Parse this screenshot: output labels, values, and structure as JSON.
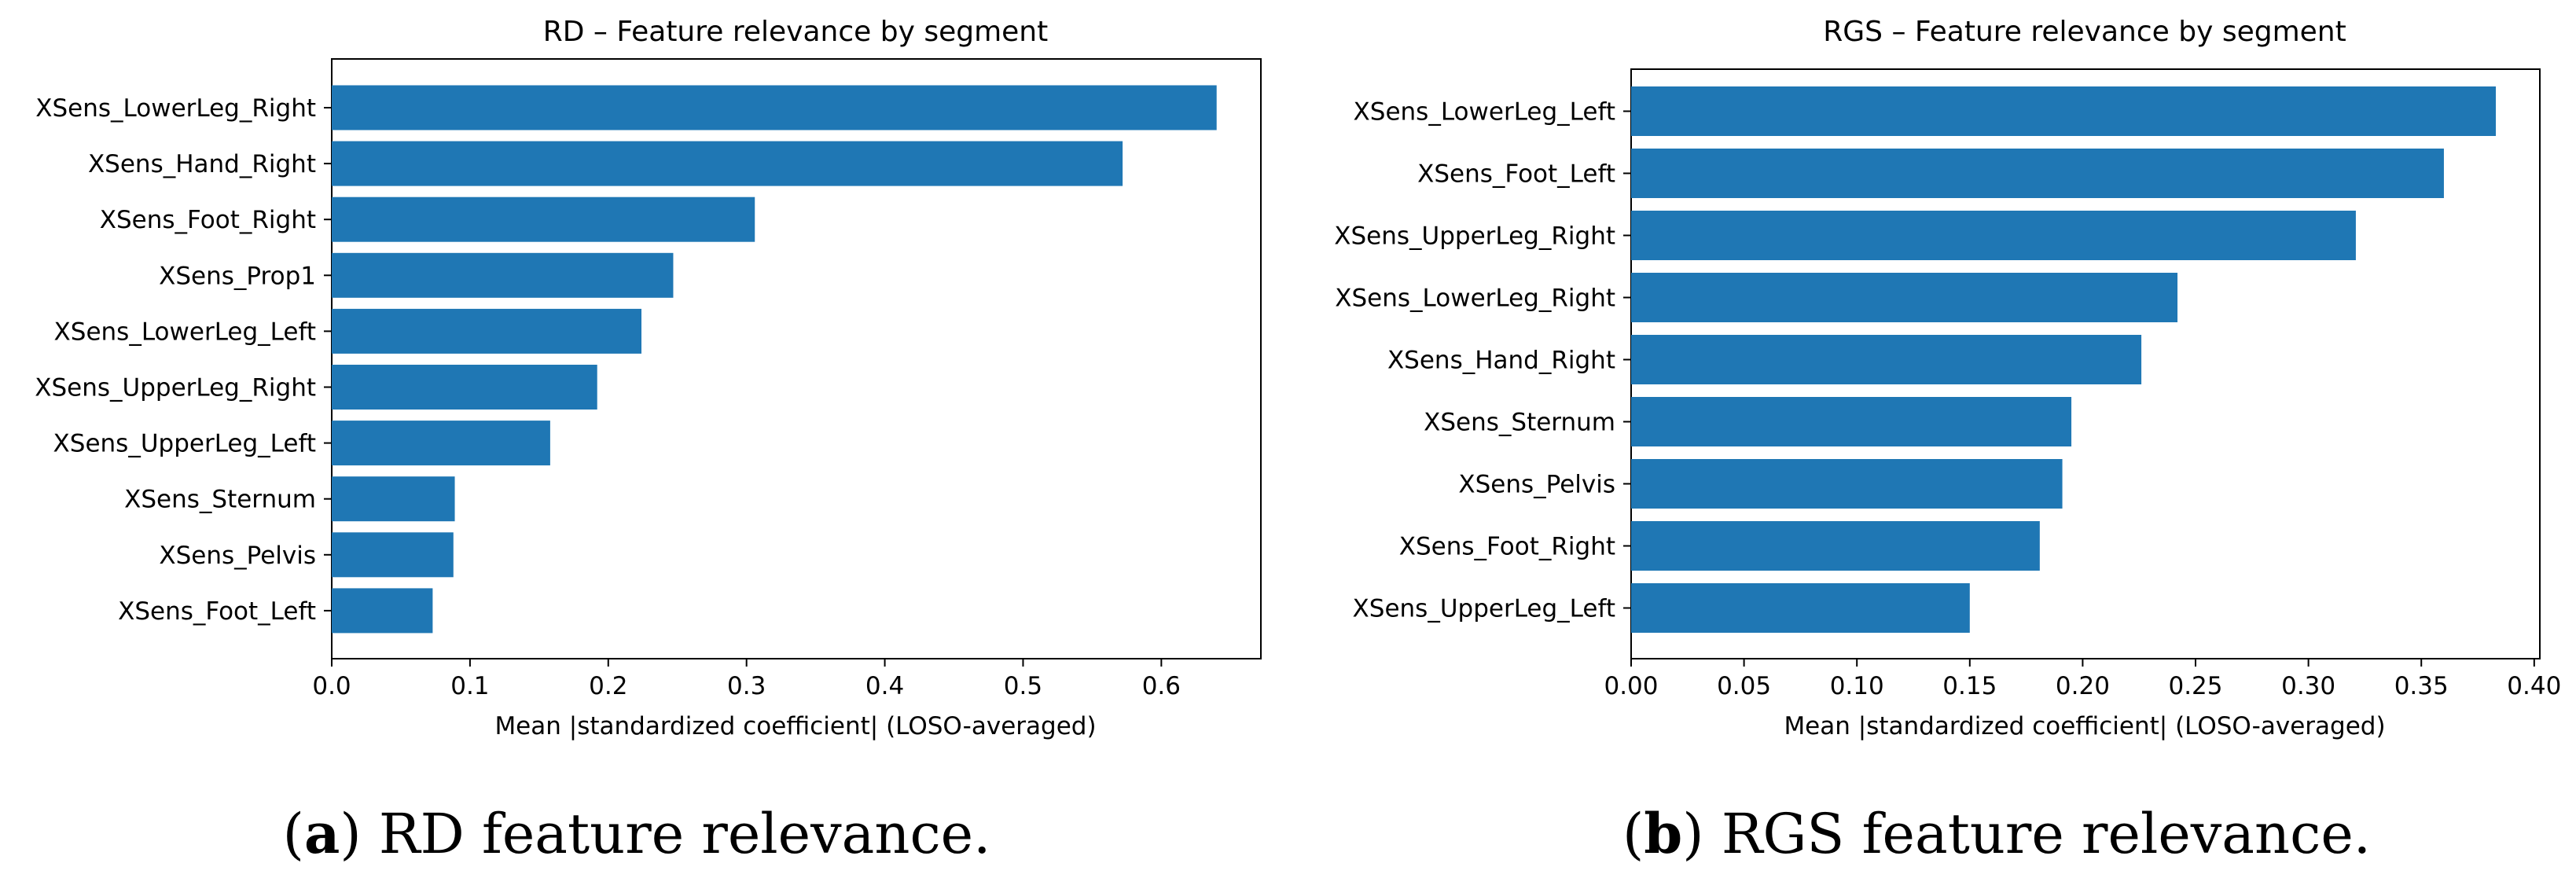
{
  "chart_data": [
    {
      "type": "bar",
      "orientation": "horizontal",
      "title": "RD – Feature relevance by segment",
      "xlabel": "Mean |standardized coefficient| (LOSO-averaged)",
      "ylabel": "",
      "xlim": [
        0,
        0.672
      ],
      "xticks": [
        0.0,
        0.1,
        0.2,
        0.3,
        0.4,
        0.5,
        0.6
      ],
      "xtick_labels": [
        "0.0",
        "0.1",
        "0.2",
        "0.3",
        "0.4",
        "0.5",
        "0.6"
      ],
      "grid": false,
      "bar_color": "#1f77b4",
      "categories": [
        "XSens_LowerLeg_Right",
        "XSens_Hand_Right",
        "XSens_Foot_Right",
        "XSens_Prop1",
        "XSens_LowerLeg_Left",
        "XSens_UpperLeg_Right",
        "XSens_UpperLeg_Left",
        "XSens_Sternum",
        "XSens_Pelvis",
        "XSens_Foot_Left"
      ],
      "values": [
        0.64,
        0.572,
        0.306,
        0.247,
        0.224,
        0.192,
        0.158,
        0.089,
        0.088,
        0.073
      ],
      "caption_letter": "a",
      "caption_text": "RD feature relevance."
    },
    {
      "type": "bar",
      "orientation": "horizontal",
      "title": "RGS – Feature relevance by segment",
      "xlabel": "Mean |standardized coefficient| (LOSO-averaged)",
      "ylabel": "",
      "xlim": [
        0,
        0.4025
      ],
      "xticks": [
        0.0,
        0.05,
        0.1,
        0.15,
        0.2,
        0.25,
        0.3,
        0.35,
        0.4
      ],
      "xtick_labels": [
        "0.00",
        "0.05",
        "0.10",
        "0.15",
        "0.20",
        "0.25",
        "0.30",
        "0.35",
        "0.40"
      ],
      "grid": false,
      "bar_color": "#1f77b4",
      "categories": [
        "XSens_LowerLeg_Left",
        "XSens_Foot_Left",
        "XSens_UpperLeg_Right",
        "XSens_LowerLeg_Right",
        "XSens_Hand_Right",
        "XSens_Sternum",
        "XSens_Pelvis",
        "XSens_Foot_Right",
        "XSens_UpperLeg_Left"
      ],
      "values": [
        0.383,
        0.36,
        0.321,
        0.242,
        0.226,
        0.195,
        0.191,
        0.181,
        0.15
      ],
      "caption_letter": "b",
      "caption_text": "RGS feature relevance."
    }
  ]
}
